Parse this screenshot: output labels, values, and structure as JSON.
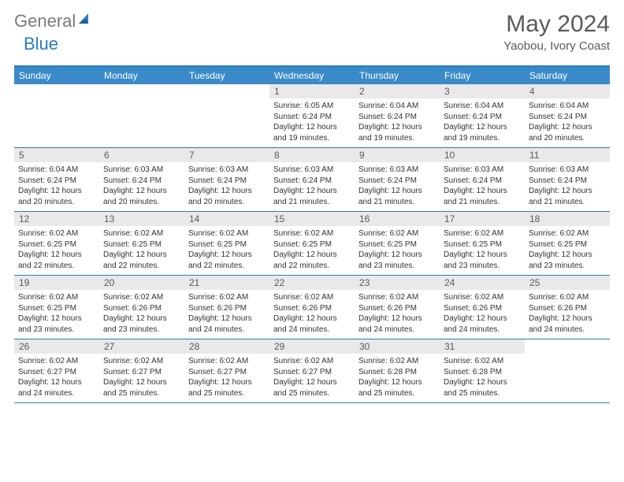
{
  "brand": {
    "part1": "General",
    "part2": "Blue"
  },
  "title": {
    "month": "May 2024",
    "location": "Yaobou, Ivory Coast"
  },
  "colors": {
    "header_bg": "#3a8ac8",
    "border": "#2a7bc0",
    "daynum_bg": "#e9e9e9",
    "text": "#333333",
    "muted": "#5a5a5a"
  },
  "dayNames": [
    "Sunday",
    "Monday",
    "Tuesday",
    "Wednesday",
    "Thursday",
    "Friday",
    "Saturday"
  ],
  "weeks": [
    [
      {
        "n": "",
        "sunrise": "",
        "sunset": "",
        "daylight": ""
      },
      {
        "n": "",
        "sunrise": "",
        "sunset": "",
        "daylight": ""
      },
      {
        "n": "",
        "sunrise": "",
        "sunset": "",
        "daylight": ""
      },
      {
        "n": "1",
        "sunrise": "Sunrise: 6:05 AM",
        "sunset": "Sunset: 6:24 PM",
        "daylight": "Daylight: 12 hours and 19 minutes."
      },
      {
        "n": "2",
        "sunrise": "Sunrise: 6:04 AM",
        "sunset": "Sunset: 6:24 PM",
        "daylight": "Daylight: 12 hours and 19 minutes."
      },
      {
        "n": "3",
        "sunrise": "Sunrise: 6:04 AM",
        "sunset": "Sunset: 6:24 PM",
        "daylight": "Daylight: 12 hours and 19 minutes."
      },
      {
        "n": "4",
        "sunrise": "Sunrise: 6:04 AM",
        "sunset": "Sunset: 6:24 PM",
        "daylight": "Daylight: 12 hours and 20 minutes."
      }
    ],
    [
      {
        "n": "5",
        "sunrise": "Sunrise: 6:04 AM",
        "sunset": "Sunset: 6:24 PM",
        "daylight": "Daylight: 12 hours and 20 minutes."
      },
      {
        "n": "6",
        "sunrise": "Sunrise: 6:03 AM",
        "sunset": "Sunset: 6:24 PM",
        "daylight": "Daylight: 12 hours and 20 minutes."
      },
      {
        "n": "7",
        "sunrise": "Sunrise: 6:03 AM",
        "sunset": "Sunset: 6:24 PM",
        "daylight": "Daylight: 12 hours and 20 minutes."
      },
      {
        "n": "8",
        "sunrise": "Sunrise: 6:03 AM",
        "sunset": "Sunset: 6:24 PM",
        "daylight": "Daylight: 12 hours and 21 minutes."
      },
      {
        "n": "9",
        "sunrise": "Sunrise: 6:03 AM",
        "sunset": "Sunset: 6:24 PM",
        "daylight": "Daylight: 12 hours and 21 minutes."
      },
      {
        "n": "10",
        "sunrise": "Sunrise: 6:03 AM",
        "sunset": "Sunset: 6:24 PM",
        "daylight": "Daylight: 12 hours and 21 minutes."
      },
      {
        "n": "11",
        "sunrise": "Sunrise: 6:03 AM",
        "sunset": "Sunset: 6:24 PM",
        "daylight": "Daylight: 12 hours and 21 minutes."
      }
    ],
    [
      {
        "n": "12",
        "sunrise": "Sunrise: 6:02 AM",
        "sunset": "Sunset: 6:25 PM",
        "daylight": "Daylight: 12 hours and 22 minutes."
      },
      {
        "n": "13",
        "sunrise": "Sunrise: 6:02 AM",
        "sunset": "Sunset: 6:25 PM",
        "daylight": "Daylight: 12 hours and 22 minutes."
      },
      {
        "n": "14",
        "sunrise": "Sunrise: 6:02 AM",
        "sunset": "Sunset: 6:25 PM",
        "daylight": "Daylight: 12 hours and 22 minutes."
      },
      {
        "n": "15",
        "sunrise": "Sunrise: 6:02 AM",
        "sunset": "Sunset: 6:25 PM",
        "daylight": "Daylight: 12 hours and 22 minutes."
      },
      {
        "n": "16",
        "sunrise": "Sunrise: 6:02 AM",
        "sunset": "Sunset: 6:25 PM",
        "daylight": "Daylight: 12 hours and 23 minutes."
      },
      {
        "n": "17",
        "sunrise": "Sunrise: 6:02 AM",
        "sunset": "Sunset: 6:25 PM",
        "daylight": "Daylight: 12 hours and 23 minutes."
      },
      {
        "n": "18",
        "sunrise": "Sunrise: 6:02 AM",
        "sunset": "Sunset: 6:25 PM",
        "daylight": "Daylight: 12 hours and 23 minutes."
      }
    ],
    [
      {
        "n": "19",
        "sunrise": "Sunrise: 6:02 AM",
        "sunset": "Sunset: 6:25 PM",
        "daylight": "Daylight: 12 hours and 23 minutes."
      },
      {
        "n": "20",
        "sunrise": "Sunrise: 6:02 AM",
        "sunset": "Sunset: 6:26 PM",
        "daylight": "Daylight: 12 hours and 23 minutes."
      },
      {
        "n": "21",
        "sunrise": "Sunrise: 6:02 AM",
        "sunset": "Sunset: 6:26 PM",
        "daylight": "Daylight: 12 hours and 24 minutes."
      },
      {
        "n": "22",
        "sunrise": "Sunrise: 6:02 AM",
        "sunset": "Sunset: 6:26 PM",
        "daylight": "Daylight: 12 hours and 24 minutes."
      },
      {
        "n": "23",
        "sunrise": "Sunrise: 6:02 AM",
        "sunset": "Sunset: 6:26 PM",
        "daylight": "Daylight: 12 hours and 24 minutes."
      },
      {
        "n": "24",
        "sunrise": "Sunrise: 6:02 AM",
        "sunset": "Sunset: 6:26 PM",
        "daylight": "Daylight: 12 hours and 24 minutes."
      },
      {
        "n": "25",
        "sunrise": "Sunrise: 6:02 AM",
        "sunset": "Sunset: 6:26 PM",
        "daylight": "Daylight: 12 hours and 24 minutes."
      }
    ],
    [
      {
        "n": "26",
        "sunrise": "Sunrise: 6:02 AM",
        "sunset": "Sunset: 6:27 PM",
        "daylight": "Daylight: 12 hours and 24 minutes."
      },
      {
        "n": "27",
        "sunrise": "Sunrise: 6:02 AM",
        "sunset": "Sunset: 6:27 PM",
        "daylight": "Daylight: 12 hours and 25 minutes."
      },
      {
        "n": "28",
        "sunrise": "Sunrise: 6:02 AM",
        "sunset": "Sunset: 6:27 PM",
        "daylight": "Daylight: 12 hours and 25 minutes."
      },
      {
        "n": "29",
        "sunrise": "Sunrise: 6:02 AM",
        "sunset": "Sunset: 6:27 PM",
        "daylight": "Daylight: 12 hours and 25 minutes."
      },
      {
        "n": "30",
        "sunrise": "Sunrise: 6:02 AM",
        "sunset": "Sunset: 6:28 PM",
        "daylight": "Daylight: 12 hours and 25 minutes."
      },
      {
        "n": "31",
        "sunrise": "Sunrise: 6:02 AM",
        "sunset": "Sunset: 6:28 PM",
        "daylight": "Daylight: 12 hours and 25 minutes."
      },
      {
        "n": "",
        "sunrise": "",
        "sunset": "",
        "daylight": ""
      }
    ]
  ]
}
